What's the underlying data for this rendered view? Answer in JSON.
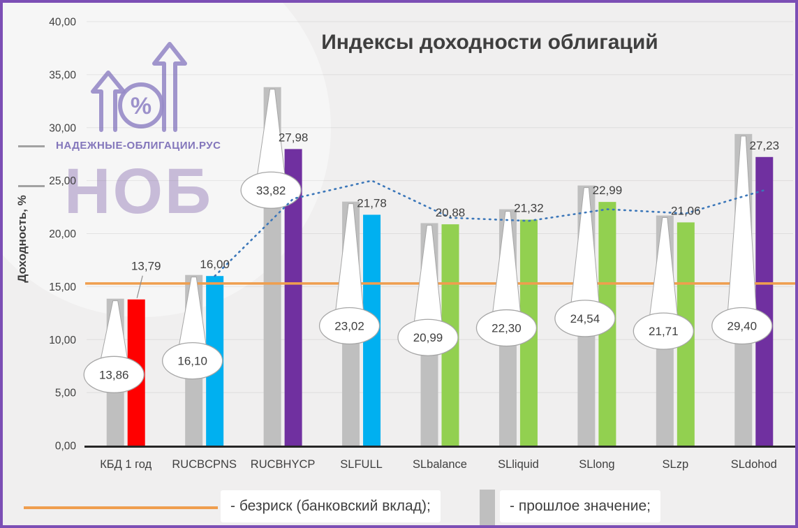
{
  "page": {
    "background": "#F0EFEF",
    "border_color": "#7C4FB5"
  },
  "title": "Индексы доходности облигаций",
  "y_axis_label": "Доходность, %",
  "watermark": {
    "line1": "НАДЕЖНЫЕ-ОБЛИГАЦИИ.РУС",
    "abbr": "НОБ",
    "percent": "%",
    "color": "#8F7FC5"
  },
  "legend": {
    "items": [
      {
        "swatch": "line",
        "label": "- безриск (банковский вклад);"
      },
      {
        "swatch": "bar",
        "label": "- прошлое значение;"
      }
    ]
  },
  "chart_data": {
    "type": "bar",
    "title": "Индексы доходности облигаций",
    "ylabel": "Доходность, %",
    "ylim": [
      0,
      40
    ],
    "ytick_step": 5,
    "grid": "faint-horizontal",
    "legend_position": "bottom",
    "categories": [
      "КБД 1 год",
      "RUCBCPNS",
      "RUCBHYCP",
      "SLFULL",
      "SLbalance",
      "SLliquid",
      "SLlong",
      "SLzp",
      "SLdohod"
    ],
    "series": [
      {
        "name": "прошлое значение",
        "color": "#BFBFBF",
        "values": [
          13.86,
          16.1,
          33.82,
          23.02,
          20.99,
          22.3,
          24.54,
          21.71,
          29.4
        ],
        "labels": [
          "13,86",
          "16,10",
          "33,82",
          "23,02",
          "20,99",
          "22,30",
          "24,54",
          "21,71",
          "29,40"
        ],
        "label_style": "oval-callout"
      },
      {
        "name": "",
        "colors": [
          "#FF0000",
          "#00B0F0",
          "#7030A0",
          "#00B0F0",
          "#92D050",
          "#92D050",
          "#92D050",
          "#92D050",
          "#7030A0"
        ],
        "values": [
          13.79,
          16.0,
          27.98,
          21.78,
          20.88,
          21.32,
          22.99,
          21.06,
          27.23
        ],
        "labels": [
          "13,79",
          "16,00",
          "27,98",
          "21,78",
          "20,88",
          "21,32",
          "22,99",
          "21,06",
          "27,23"
        ],
        "label_style": "above"
      }
    ],
    "risk_free_line": {
      "value": 15.3,
      "color": "#EF9E4E",
      "label": "безриск (банковский вклад)"
    },
    "trend_line": {
      "color": "#3C77B9",
      "style": "dotted",
      "values": [
        null,
        16.0,
        23.3,
        25.0,
        21.5,
        21.2,
        22.3,
        21.9,
        24.1
      ]
    },
    "callout_anchor_values": [
      6.7,
      8.0,
      24.1,
      11.3,
      10.2,
      11.1,
      12.0,
      10.8,
      11.3
    ]
  }
}
